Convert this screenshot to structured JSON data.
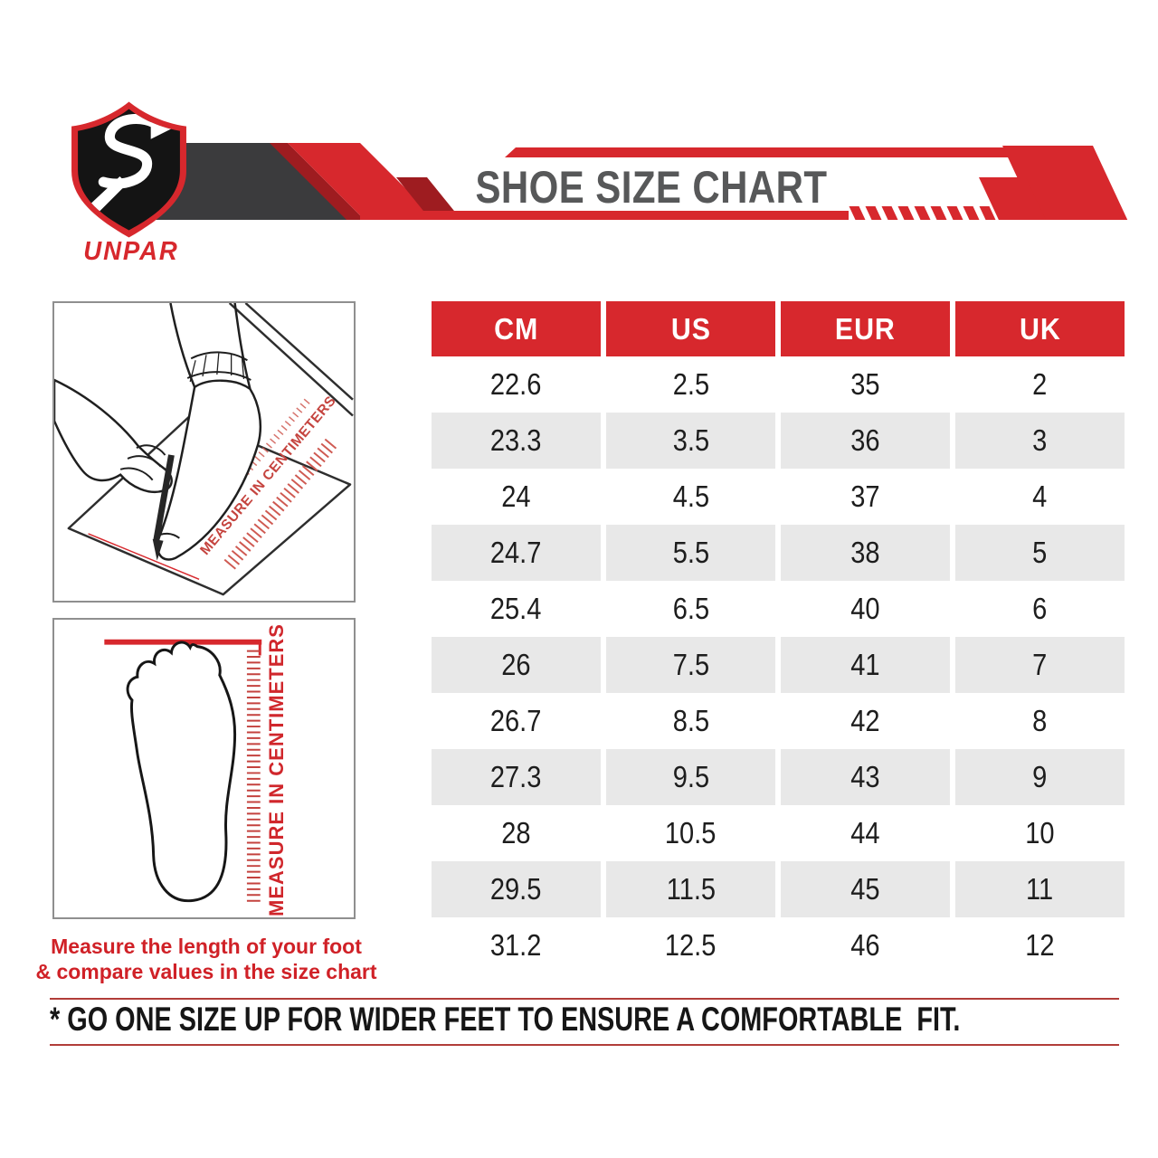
{
  "brand": {
    "name": "UNPAR",
    "logo_icon": "shield-s-logo"
  },
  "header": {
    "title": "SHOE SIZE CHART"
  },
  "size_table": {
    "columns": [
      "CM",
      "US",
      "EUR",
      "UK"
    ],
    "rows": [
      [
        "22.6",
        "2.5",
        "35",
        "2"
      ],
      [
        "23.3",
        "3.5",
        "36",
        "3"
      ],
      [
        "24",
        "4.5",
        "37",
        "4"
      ],
      [
        "24.7",
        "5.5",
        "38",
        "5"
      ],
      [
        "25.4",
        "6.5",
        "40",
        "6"
      ],
      [
        "26",
        "7.5",
        "41",
        "7"
      ],
      [
        "26.7",
        "8.5",
        "42",
        "8"
      ],
      [
        "27.3",
        "9.5",
        "43",
        "9"
      ],
      [
        "28",
        "10.5",
        "44",
        "10"
      ],
      [
        "29.5",
        "11.5",
        "45",
        "11"
      ],
      [
        "31.2",
        "12.5",
        "46",
        "12"
      ]
    ]
  },
  "illustrations": {
    "measuring_foot": {
      "icon": "foot-measuring-with-pencil-illustration",
      "ruler_label": "MEASURE IN CENTIMETERS"
    },
    "footprint": {
      "icon": "footprint-outline-illustration",
      "ruler_label": "MEASURE IN CENTIMETERS"
    },
    "caption_line1": "Measure the length of your foot",
    "caption_line2": "& compare values in the size chart"
  },
  "footnote": "* GO ONE SIZE UP FOR WIDER FEET TO ENSURE A COMFORTABLE  FIT.",
  "colors": {
    "red": "#d7282d",
    "dark_red": "#9e1c20",
    "charcoal": "#3b3b3d",
    "title_gray": "#575859",
    "row_gray": "#e8e8e8",
    "text_black": "#1d1d1d"
  }
}
